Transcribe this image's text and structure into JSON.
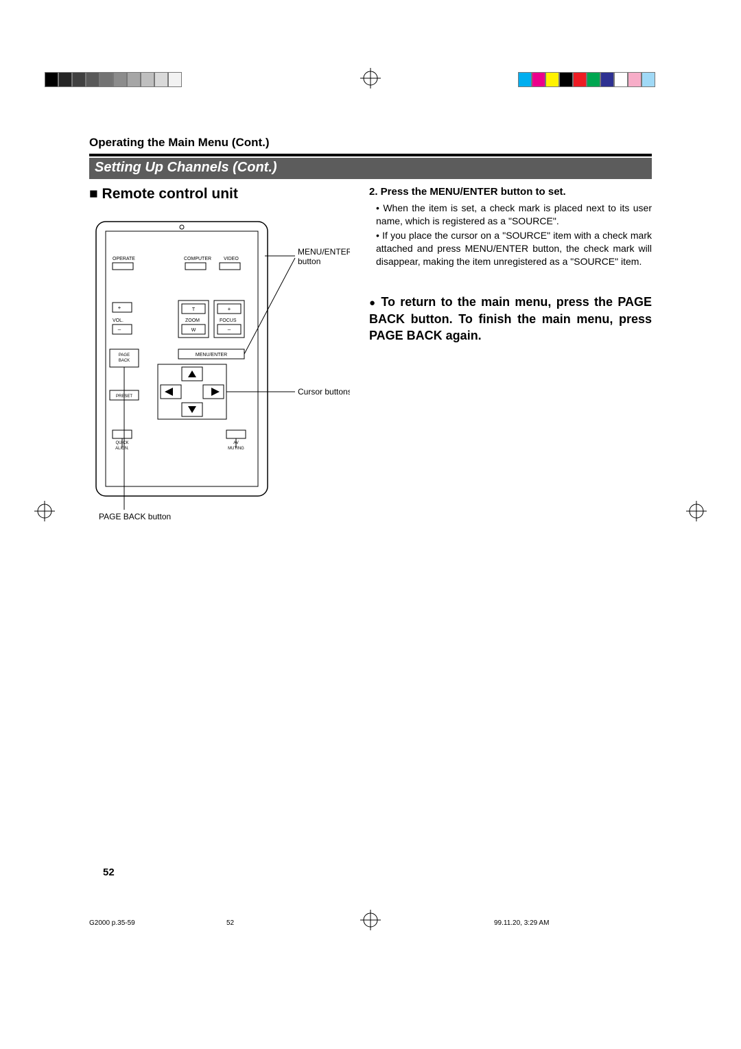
{
  "printMarks": {
    "grayBars": [
      "#000000",
      "#262626",
      "#404040",
      "#595959",
      "#737373",
      "#8c8c8c",
      "#a6a6a6",
      "#bfbfbf",
      "#d9d9d9",
      "#f2f2f2"
    ],
    "colorBars": [
      "#00aeef",
      "#ec008c",
      "#fff200",
      "#000000",
      "#ed1c24",
      "#00a651",
      "#2e3192",
      "#ffffff",
      "#f7adc8",
      "#a0d9f6"
    ],
    "regMarkColor": "#000000"
  },
  "header": {
    "operating": "Operating the Main Menu (Cont.)",
    "sectionTitle": "Setting Up Channels (Cont.)"
  },
  "left": {
    "title": "Remote control unit",
    "labels": {
      "menuEnter": "MENU/ENTER button",
      "cursor": "Cursor buttons",
      "pageBack": "PAGE BACK button"
    },
    "remote": {
      "operate": "OPERATE",
      "computer": "COMPUTER",
      "video": "VIDEO",
      "vol": "VOL.",
      "zoom": "ZOOM",
      "focus": "FOCUS",
      "t": "T",
      "w": "W",
      "plus": "+",
      "minus": "–",
      "pageBack1": "PAGE",
      "pageBack2": "BACK",
      "menuEnter": "MENU/ENTER",
      "preset": "PRESET",
      "quick1": "QUICK",
      "quick2": "ALIGN.",
      "av1": "AV",
      "av2": "MUTING"
    }
  },
  "right": {
    "stepTitle": "2.  Press the MENU/ENTER button to set.",
    "bullets": [
      "When the item is set, a check mark is placed next to its user name, which is registered as a \"SOURCE\".",
      "If you place the cursor on a \"SOURCE\" item with a check mark attached and press MENU/ENTER button, the check mark will disappear, making the item unregistered as a \"SOURCE\" item."
    ],
    "returnText": "To return to the main menu, press the PAGE BACK button. To finish the main menu, press PAGE BACK again."
  },
  "footer": {
    "pageNum": "52",
    "imprintLeft": "G2000  p.35-59",
    "imprintMid": "52",
    "imprintRight": "99.11.20, 3:29 AM"
  },
  "layout": {
    "pageWidth": 1080,
    "pageHeight": 1529,
    "bgColor": "#ffffff",
    "sectionBarBg": "#5c5c5c",
    "sectionBarFg": "#ffffff"
  }
}
